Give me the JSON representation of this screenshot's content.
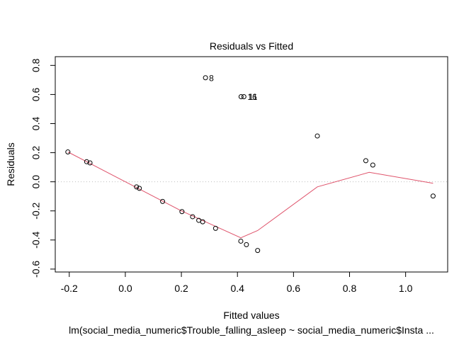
{
  "chart_data": {
    "type": "scatter",
    "title": "Residuals vs Fitted",
    "xlabel": "Fitted values",
    "ylabel": "Residuals",
    "subtitle": "lm(social_media_numeric$Trouble_falling_asleep ~ social_media_numeric$Insta ...",
    "xlim": [
      -0.25,
      1.15
    ],
    "ylim": [
      -0.62,
      0.86
    ],
    "x_ticks": [
      -0.2,
      0.0,
      0.2,
      0.4,
      0.6,
      0.8,
      1.0
    ],
    "x_tick_labels": [
      "-0.2",
      "0.0",
      "0.2",
      "0.4",
      "0.6",
      "0.8",
      "1.0"
    ],
    "y_ticks": [
      -0.6,
      -0.4,
      -0.2,
      0.0,
      0.2,
      0.4,
      0.6,
      0.8
    ],
    "y_tick_labels": [
      "-0.6",
      "-0.4",
      "-0.2",
      "0.0",
      "0.2",
      "0.4",
      "0.6",
      "0.8"
    ],
    "reference_line": {
      "y": 0,
      "style": "dotted",
      "color": "#bebebe"
    },
    "points": [
      {
        "x": -0.205,
        "y": 0.205
      },
      {
        "x": -0.138,
        "y": 0.138
      },
      {
        "x": -0.126,
        "y": 0.13
      },
      {
        "x": 0.04,
        "y": -0.035
      },
      {
        "x": 0.05,
        "y": -0.045
      },
      {
        "x": 0.133,
        "y": -0.135
      },
      {
        "x": 0.202,
        "y": -0.205
      },
      {
        "x": 0.24,
        "y": -0.24
      },
      {
        "x": 0.262,
        "y": -0.265
      },
      {
        "x": 0.276,
        "y": -0.275
      },
      {
        "x": 0.322,
        "y": -0.32
      },
      {
        "x": 0.286,
        "y": 0.715
      },
      {
        "x": 0.412,
        "y": -0.408
      },
      {
        "x": 0.432,
        "y": -0.432
      },
      {
        "x": 0.472,
        "y": -0.472
      },
      {
        "x": 0.413,
        "y": 0.585
      },
      {
        "x": 0.423,
        "y": 0.585
      },
      {
        "x": 0.685,
        "y": 0.315
      },
      {
        "x": 0.858,
        "y": 0.145
      },
      {
        "x": 0.883,
        "y": 0.115
      },
      {
        "x": 1.098,
        "y": -0.098
      }
    ],
    "point_labels": [
      {
        "x": 0.286,
        "y": 0.715,
        "text": "8"
      },
      {
        "x": 0.423,
        "y": 0.585,
        "text": "16"
      },
      {
        "x": 0.427,
        "y": 0.585,
        "text": "11"
      }
    ],
    "smooth_line": {
      "color": "#df536b",
      "x": [
        -0.205,
        0.0,
        0.2,
        0.412,
        0.472,
        0.685,
        0.87,
        1.098
      ],
      "y": [
        0.205,
        0.0,
        -0.2,
        -0.385,
        -0.335,
        -0.035,
        0.065,
        -0.01
      ]
    }
  }
}
